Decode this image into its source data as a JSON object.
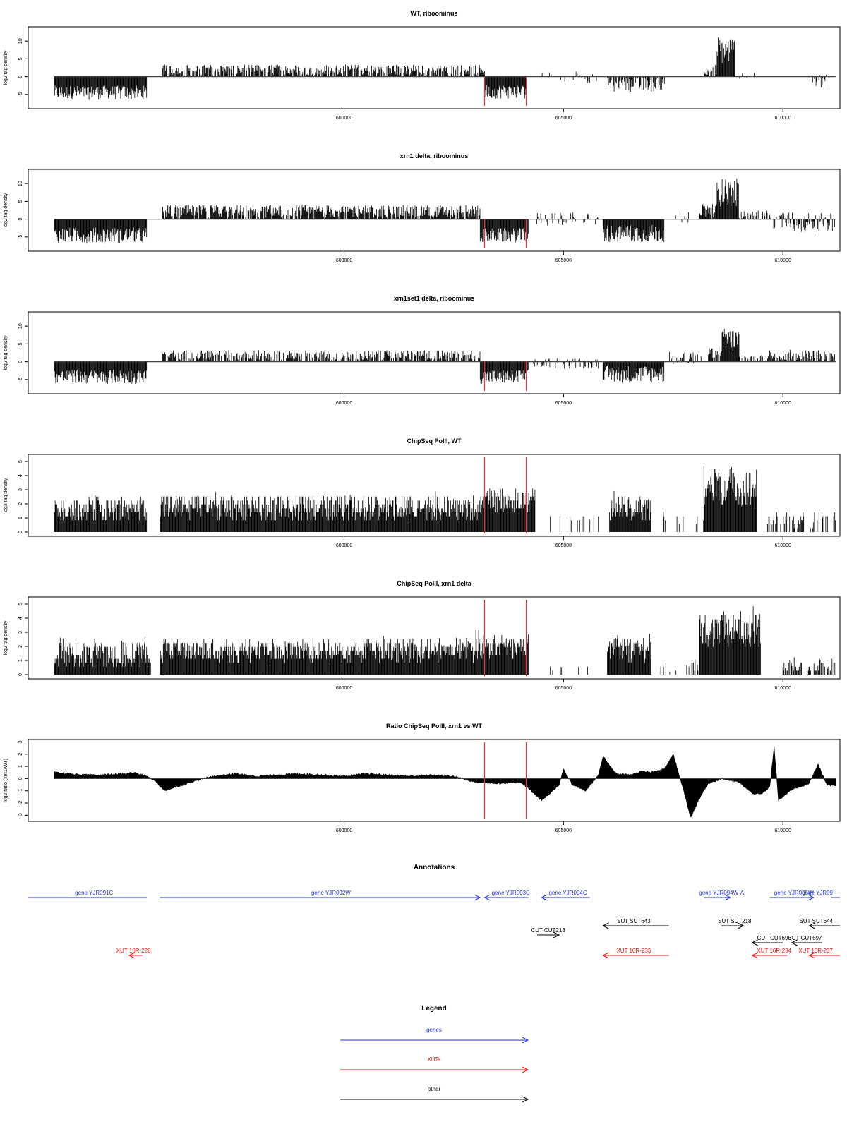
{
  "chart_data": [
    {
      "type": "bar",
      "title": "WT, riboominus",
      "ylabel": "log2 tag density",
      "ylim": [
        -9,
        14
      ],
      "yticks": [
        -5,
        0,
        5,
        10
      ],
      "xlim": [
        592800,
        611300
      ],
      "xticks": [
        600000,
        605000,
        610000
      ],
      "xtick_labels": [
        "600000",
        "605000",
        "610000"
      ],
      "vlines": [
        603200,
        604150
      ],
      "style": "signed",
      "segments": [
        {
          "from": 593400,
          "to": 595500,
          "level": -4.5,
          "noise": 2.0,
          "density": 1.0
        },
        {
          "from": 595850,
          "to": 603200,
          "level": 1.8,
          "noise": 1.6,
          "density": 0.75
        },
        {
          "from": 603200,
          "to": 604150,
          "level": -4.2,
          "noise": 2.0,
          "density": 1.0
        },
        {
          "from": 604500,
          "to": 605300,
          "level": 0.2,
          "noise": 1.6,
          "density": 0.15
        },
        {
          "from": 605300,
          "to": 605800,
          "level": -0.5,
          "noise": 1.8,
          "density": 0.2
        },
        {
          "from": 606000,
          "to": 607300,
          "level": -2.3,
          "noise": 2.0,
          "density": 0.7
        },
        {
          "from": 608200,
          "to": 608500,
          "level": 2.0,
          "noise": 1.5,
          "density": 0.6
        },
        {
          "from": 608500,
          "to": 608900,
          "level": 7.5,
          "noise": 4.0,
          "density": 1.0
        },
        {
          "from": 609000,
          "to": 609400,
          "level": 0.4,
          "noise": 1.0,
          "density": 0.2
        },
        {
          "from": 610600,
          "to": 611200,
          "level": -1.2,
          "noise": 2.2,
          "density": 0.4
        }
      ]
    },
    {
      "type": "bar",
      "title": "xrn1 delta, riboominus",
      "ylabel": "log2 tag density",
      "ylim": [
        -9,
        14
      ],
      "yticks": [
        -5,
        0,
        5,
        10
      ],
      "xlim": [
        592800,
        611300
      ],
      "xticks": [
        600000,
        605000,
        610000
      ],
      "xtick_labels": [
        "600000",
        "605000",
        "610000"
      ],
      "vlines": [
        603200,
        604150
      ],
      "style": "signed",
      "segments": [
        {
          "from": 593400,
          "to": 595500,
          "level": -4.5,
          "noise": 2.2,
          "density": 1.0
        },
        {
          "from": 595850,
          "to": 603100,
          "level": 2.2,
          "noise": 1.8,
          "density": 0.85
        },
        {
          "from": 603100,
          "to": 604200,
          "level": -4.5,
          "noise": 2.0,
          "density": 1.0
        },
        {
          "from": 604300,
          "to": 605800,
          "level": 0.0,
          "noise": 2.0,
          "density": 0.4
        },
        {
          "from": 605900,
          "to": 607300,
          "level": -4.0,
          "noise": 2.5,
          "density": 1.0
        },
        {
          "from": 607400,
          "to": 608000,
          "level": 0.5,
          "noise": 1.5,
          "density": 0.2
        },
        {
          "from": 608100,
          "to": 608500,
          "level": 2.5,
          "noise": 2.0,
          "density": 0.9
        },
        {
          "from": 608500,
          "to": 609000,
          "level": 7.5,
          "noise": 4.0,
          "density": 1.0
        },
        {
          "from": 609000,
          "to": 609700,
          "level": 1.0,
          "noise": 1.5,
          "density": 0.5
        },
        {
          "from": 609700,
          "to": 611200,
          "level": -0.8,
          "noise": 2.8,
          "density": 0.7
        }
      ]
    },
    {
      "type": "bar",
      "title": "xrn1set1 delta, riboominus",
      "ylabel": "log2 tag density",
      "ylim": [
        -9,
        14
      ],
      "yticks": [
        -5,
        0,
        5,
        10
      ],
      "xlim": [
        592800,
        611300
      ],
      "xticks": [
        600000,
        605000,
        610000
      ],
      "xtick_labels": [
        "600000",
        "605000",
        "610000"
      ],
      "vlines": [
        603200,
        604150
      ],
      "style": "signed",
      "segments": [
        {
          "from": 593400,
          "to": 595500,
          "level": -4.2,
          "noise": 2.0,
          "density": 1.0
        },
        {
          "from": 595850,
          "to": 603100,
          "level": 1.6,
          "noise": 1.6,
          "density": 0.7
        },
        {
          "from": 603100,
          "to": 604200,
          "level": -4.2,
          "noise": 2.0,
          "density": 1.0
        },
        {
          "from": 604300,
          "to": 605800,
          "level": -0.5,
          "noise": 1.5,
          "density": 0.4
        },
        {
          "from": 605900,
          "to": 607300,
          "level": -3.5,
          "noise": 2.5,
          "density": 1.0
        },
        {
          "from": 607400,
          "to": 608300,
          "level": 1.0,
          "noise": 1.8,
          "density": 0.4
        },
        {
          "from": 608300,
          "to": 608600,
          "level": 2.5,
          "noise": 1.5,
          "density": 0.8
        },
        {
          "from": 608600,
          "to": 609000,
          "level": 6.0,
          "noise": 3.5,
          "density": 1.0
        },
        {
          "from": 609000,
          "to": 609700,
          "level": 0.8,
          "noise": 1.2,
          "density": 0.5
        },
        {
          "from": 609700,
          "to": 611200,
          "level": 1.8,
          "noise": 1.6,
          "density": 0.75
        }
      ]
    },
    {
      "type": "bar",
      "title": "ChipSeq PolII, WT",
      "ylabel": "log2 tag density",
      "ylim": [
        -0.3,
        5.5
      ],
      "yticks": [
        0,
        1,
        2,
        3,
        4,
        5
      ],
      "xlim": [
        592800,
        611300
      ],
      "xticks": [
        600000,
        605000,
        610000
      ],
      "xtick_labels": [
        "600000",
        "605000",
        "610000"
      ],
      "vlines": [
        603200,
        604150
      ],
      "style": "positive",
      "segments": [
        {
          "from": 593400,
          "to": 595500,
          "level": 1.6,
          "noise": 0.9,
          "density": 1.0
        },
        {
          "from": 595800,
          "to": 603100,
          "level": 1.7,
          "noise": 0.9,
          "density": 1.0
        },
        {
          "from": 603100,
          "to": 604350,
          "level": 2.2,
          "noise": 0.9,
          "density": 1.0
        },
        {
          "from": 604700,
          "to": 605800,
          "level": 0.9,
          "noise": 0.2,
          "density": 0.08
        },
        {
          "from": 606050,
          "to": 607000,
          "level": 1.6,
          "noise": 0.9,
          "density": 1.0
        },
        {
          "from": 607200,
          "to": 608200,
          "level": 0.9,
          "noise": 0.3,
          "density": 0.15
        },
        {
          "from": 608200,
          "to": 609400,
          "level": 3.2,
          "noise": 1.4,
          "density": 1.0
        },
        {
          "from": 609600,
          "to": 611200,
          "level": 0.9,
          "noise": 0.6,
          "density": 0.35
        }
      ]
    },
    {
      "type": "bar",
      "title": "ChipSeq PolII, xrn1 delta",
      "ylabel": "log2 tag density",
      "ylim": [
        -0.3,
        5.5
      ],
      "yticks": [
        0,
        1,
        2,
        3,
        4,
        5
      ],
      "xlim": [
        592800,
        611300
      ],
      "xticks": [
        600000,
        605000,
        610000
      ],
      "xtick_labels": [
        "600000",
        "605000",
        "610000"
      ],
      "vlines": [
        603200,
        604150
      ],
      "style": "positive",
      "segments": [
        {
          "from": 593400,
          "to": 595600,
          "level": 1.4,
          "noise": 0.9,
          "density": 1.0
        },
        {
          "from": 595800,
          "to": 603000,
          "level": 1.7,
          "noise": 0.8,
          "density": 1.0
        },
        {
          "from": 603000,
          "to": 604200,
          "level": 2.0,
          "noise": 0.8,
          "density": 1.0
        },
        {
          "from": 604300,
          "to": 605800,
          "level": 0.5,
          "noise": 0.3,
          "density": 0.06
        },
        {
          "from": 606000,
          "to": 607000,
          "level": 1.8,
          "noise": 0.9,
          "density": 1.0
        },
        {
          "from": 607100,
          "to": 608100,
          "level": 0.5,
          "noise": 0.4,
          "density": 0.15
        },
        {
          "from": 608100,
          "to": 609500,
          "level": 3.2,
          "noise": 1.2,
          "density": 1.0
        },
        {
          "from": 610000,
          "to": 611200,
          "level": 0.6,
          "noise": 0.5,
          "density": 0.5
        }
      ]
    },
    {
      "type": "area",
      "title": "Ratio ChipSeq PolII, xrn1 vs WT",
      "ylabel": "log2 ratio (xrn1/WT)",
      "ylim": [
        -3.5,
        3.2
      ],
      "yticks": [
        -3,
        -2,
        -1,
        0,
        1,
        2,
        3
      ],
      "xlim": [
        592800,
        611300
      ],
      "xticks": [
        600000,
        605000,
        610000
      ],
      "xtick_labels": [
        "600000",
        "605000",
        "610000"
      ],
      "vlines": [
        603200,
        604150
      ],
      "style": "ratio",
      "x": [
        593400,
        594000,
        594500,
        595000,
        595200,
        595500,
        595700,
        595900,
        596500,
        597000,
        597500,
        598000,
        598500,
        599000,
        599500,
        600000,
        600500,
        601000,
        601500,
        602000,
        602500,
        603000,
        603500,
        604000,
        604200,
        604500,
        604700,
        604900,
        605000,
        605200,
        605500,
        605800,
        605900,
        606200,
        606500,
        606800,
        607000,
        607300,
        607500,
        607700,
        607900,
        608100,
        608300,
        608600,
        609000,
        609300,
        609500,
        609700,
        609800,
        609900,
        610200,
        610600,
        610800,
        611000,
        611200
      ],
      "y": [
        0.5,
        0.3,
        0.3,
        0.4,
        0.5,
        0.2,
        -0.2,
        -1.0,
        -0.3,
        0.2,
        0.4,
        0.2,
        0.3,
        0.4,
        0.3,
        0.2,
        0.4,
        0.3,
        0.2,
        0.3,
        0.2,
        -0.3,
        -0.4,
        -0.3,
        -0.8,
        -1.8,
        -1.2,
        -0.5,
        0.8,
        -0.5,
        -1.0,
        0.3,
        1.8,
        0.4,
        0.3,
        0.6,
        0.5,
        0.8,
        2.0,
        -0.5,
        -3.2,
        -1.6,
        -0.4,
        0.0,
        -0.3,
        -1.2,
        -1.3,
        -0.7,
        2.6,
        -1.8,
        -0.9,
        -0.4,
        1.2,
        -0.5,
        -0.6
      ]
    }
  ],
  "annotations": {
    "title": "Annotations",
    "features": [
      {
        "label": "gene YJR091C",
        "category": "genes",
        "start": 592800,
        "end": 595500,
        "strand": "-",
        "row": 1,
        "label_x": 594300
      },
      {
        "label": "gene YJR092W",
        "category": "genes",
        "start": 595800,
        "end": 603100,
        "strand": "+",
        "row": 1,
        "label_x": 599700
      },
      {
        "label": "gene YJR093C",
        "category": "genes",
        "start": 603200,
        "end": 604200,
        "strand": "-",
        "row": 1,
        "label_x": 603800
      },
      {
        "label": "gene YJR094C",
        "category": "genes",
        "start": 604500,
        "end": 605600,
        "strand": "-",
        "row": 1,
        "label_x": 605100
      },
      {
        "label": "gene YJR094W-A",
        "category": "genes",
        "start": 608200,
        "end": 608800,
        "strand": "+",
        "row": 1,
        "label_x": 608600
      },
      {
        "label": "gene YJR095W",
        "category": "genes",
        "start": 609700,
        "end": 610700,
        "strand": "+",
        "row": 1,
        "label_x": 610250
      },
      {
        "label": "gene YJR09",
        "category": "genes",
        "start": 611100,
        "end": 611400,
        "strand": "+",
        "row": 1,
        "label_x": 611700
      },
      {
        "label": "SUT SUT643",
        "category": "other",
        "start": 605900,
        "end": 607400,
        "strand": "-",
        "row": 2,
        "label_x": 606600
      },
      {
        "label": "SUT SUT218",
        "category": "other",
        "start": 608600,
        "end": 609100,
        "strand": "+",
        "row": 2,
        "label_x": 608900
      },
      {
        "label": "SUT SUT644",
        "category": "other",
        "start": 610600,
        "end": 611400,
        "strand": "-",
        "row": 2,
        "label_x": 611500
      },
      {
        "label": "CUT CUT218",
        "category": "other",
        "start": 604400,
        "end": 604900,
        "strand": "+",
        "row": 3,
        "label_x": 604650
      },
      {
        "label": "CUT CUT696",
        "category": "other",
        "start": 609300,
        "end": 610000,
        "strand": "-",
        "row": 4,
        "label_x": 609800
      },
      {
        "label": "CUT CUT697",
        "category": "other",
        "start": 610200,
        "end": 610900,
        "strand": "-",
        "row": 4,
        "label_x": 610500
      },
      {
        "label": "XUT 10R-228",
        "category": "XUTs",
        "start": 595100,
        "end": 595400,
        "strand": "-",
        "row": 5,
        "label_x": 595200
      },
      {
        "label": "XUT 10R-233",
        "category": "XUTs",
        "start": 605900,
        "end": 607400,
        "strand": "-",
        "row": 5,
        "label_x": 606600
      },
      {
        "label": "XUT 10R-234",
        "category": "XUTs",
        "start": 609300,
        "end": 610100,
        "strand": "-",
        "row": 5,
        "label_x": 609800
      },
      {
        "label": "XUT 10R-237",
        "category": "XUTs",
        "start": 610600,
        "end": 611400,
        "strand": "-",
        "row": 5,
        "label_x": 611500
      }
    ]
  },
  "legend": {
    "title": "Legend",
    "items": [
      {
        "label": "genes",
        "category": "genes"
      },
      {
        "label": "XUTs",
        "category": "XUTs"
      },
      {
        "label": "other",
        "category": "other"
      }
    ]
  },
  "colors": {
    "genes": "#2233dd",
    "XUTs": "#ee1111",
    "other": "#000000",
    "bars": "#000000",
    "vline": "#ee3333",
    "axis": "#000000"
  }
}
